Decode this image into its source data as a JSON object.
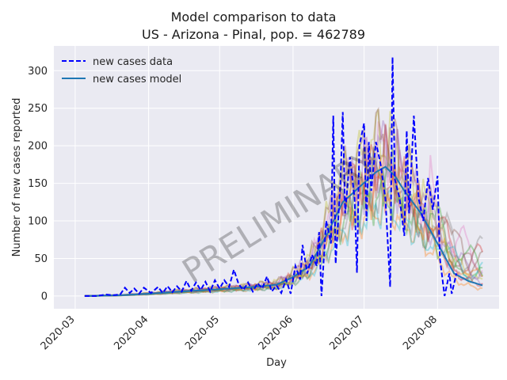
{
  "chart_data": {
    "type": "line",
    "title": "Model comparison to data",
    "subtitle": "US - Arizona - Pinal, pop. = 462789",
    "xlabel": "Day",
    "ylabel": "Number of new cases reported",
    "watermark": "PRELIMINARY",
    "x_ticks": [
      "2020-03",
      "2020-04",
      "2020-05",
      "2020-06",
      "2020-07",
      "2020-08"
    ],
    "y_ticks": [
      0,
      50,
      100,
      150,
      200,
      250,
      300
    ],
    "xlim": [
      "2020-02-21",
      "2020-08-27"
    ],
    "ylim": [
      -17,
      333
    ],
    "grid": true,
    "legend_position": "top-left",
    "legend": [
      {
        "label": "new cases data",
        "color": "#0000ff",
        "style": "dashed"
      },
      {
        "label": "new cases model",
        "color": "#1f77b4",
        "style": "solid"
      }
    ],
    "colors": {
      "background": "#eaeaf2",
      "grid": "#ffffff",
      "data_line": "#0000ff",
      "model_line": "#1f77b4",
      "ensemble": [
        "#ff7f0e",
        "#2ca02c",
        "#d62728",
        "#9467bd",
        "#8c564b",
        "#e377c2",
        "#bcbd22",
        "#17becf",
        "#7f7f7f"
      ]
    },
    "series": [
      {
        "name": "new cases data",
        "points": [
          [
            "2020-03-05",
            0
          ],
          [
            "2020-03-10",
            0
          ],
          [
            "2020-03-14",
            2
          ],
          [
            "2020-03-17",
            1
          ],
          [
            "2020-03-20",
            2
          ],
          [
            "2020-03-22",
            11
          ],
          [
            "2020-03-24",
            4
          ],
          [
            "2020-03-26",
            10
          ],
          [
            "2020-03-28",
            3
          ],
          [
            "2020-03-30",
            11
          ],
          [
            "2020-04-02",
            4
          ],
          [
            "2020-04-05",
            12
          ],
          [
            "2020-04-07",
            4
          ],
          [
            "2020-04-09",
            13
          ],
          [
            "2020-04-11",
            5
          ],
          [
            "2020-04-13",
            13
          ],
          [
            "2020-04-15",
            6
          ],
          [
            "2020-04-17",
            20
          ],
          [
            "2020-04-19",
            7
          ],
          [
            "2020-04-21",
            18
          ],
          [
            "2020-04-23",
            8
          ],
          [
            "2020-04-25",
            19
          ],
          [
            "2020-04-27",
            6
          ],
          [
            "2020-04-29",
            21
          ],
          [
            "2020-05-01",
            10
          ],
          [
            "2020-05-03",
            21
          ],
          [
            "2020-05-05",
            12
          ],
          [
            "2020-05-07",
            35
          ],
          [
            "2020-05-09",
            16
          ],
          [
            "2020-05-11",
            8
          ],
          [
            "2020-05-13",
            18
          ],
          [
            "2020-05-15",
            6
          ],
          [
            "2020-05-17",
            17
          ],
          [
            "2020-05-19",
            10
          ],
          [
            "2020-05-21",
            26
          ],
          [
            "2020-05-23",
            6
          ],
          [
            "2020-05-25",
            14
          ],
          [
            "2020-05-27",
            4
          ],
          [
            "2020-05-29",
            22
          ],
          [
            "2020-05-31",
            3
          ],
          [
            "2020-06-02",
            40
          ],
          [
            "2020-06-04",
            22
          ],
          [
            "2020-06-05",
            68
          ],
          [
            "2020-06-07",
            30
          ],
          [
            "2020-06-09",
            55
          ],
          [
            "2020-06-11",
            40
          ],
          [
            "2020-06-12",
            85
          ],
          [
            "2020-06-13",
            0
          ],
          [
            "2020-06-15",
            100
          ],
          [
            "2020-06-17",
            70
          ],
          [
            "2020-06-18",
            240
          ],
          [
            "2020-06-19",
            43
          ],
          [
            "2020-06-21",
            150
          ],
          [
            "2020-06-22",
            245
          ],
          [
            "2020-06-23",
            110
          ],
          [
            "2020-06-25",
            185
          ],
          [
            "2020-06-27",
            130
          ],
          [
            "2020-06-28",
            31
          ],
          [
            "2020-06-29",
            200
          ],
          [
            "2020-07-01",
            230
          ],
          [
            "2020-07-02",
            100
          ],
          [
            "2020-07-03",
            205
          ],
          [
            "2020-07-04",
            140
          ],
          [
            "2020-07-06",
            205
          ],
          [
            "2020-07-08",
            175
          ],
          [
            "2020-07-10",
            130
          ],
          [
            "2020-07-12",
            12
          ],
          [
            "2020-07-13",
            318
          ],
          [
            "2020-07-14",
            155
          ],
          [
            "2020-07-16",
            130
          ],
          [
            "2020-07-18",
            80
          ],
          [
            "2020-07-19",
            220
          ],
          [
            "2020-07-20",
            110
          ],
          [
            "2020-07-22",
            240
          ],
          [
            "2020-07-24",
            130
          ],
          [
            "2020-07-26",
            100
          ],
          [
            "2020-07-28",
            157
          ],
          [
            "2020-07-30",
            115
          ],
          [
            "2020-08-01",
            160
          ],
          [
            "2020-08-02",
            50
          ],
          [
            "2020-08-04",
            0
          ],
          [
            "2020-08-06",
            30
          ],
          [
            "2020-08-07",
            3
          ],
          [
            "2020-08-09",
            30
          ]
        ]
      },
      {
        "name": "new cases model",
        "points": [
          [
            "2020-03-05",
            0
          ],
          [
            "2020-03-20",
            1
          ],
          [
            "2020-04-01",
            3
          ],
          [
            "2020-04-15",
            6
          ],
          [
            "2020-05-01",
            9
          ],
          [
            "2020-05-15",
            12
          ],
          [
            "2020-05-25",
            15
          ],
          [
            "2020-06-01",
            25
          ],
          [
            "2020-06-08",
            40
          ],
          [
            "2020-06-15",
            80
          ],
          [
            "2020-06-22",
            125
          ],
          [
            "2020-06-29",
            145
          ],
          [
            "2020-07-06",
            165
          ],
          [
            "2020-07-10",
            172
          ],
          [
            "2020-07-14",
            160
          ],
          [
            "2020-07-18",
            140
          ],
          [
            "2020-07-25",
            110
          ],
          [
            "2020-08-01",
            70
          ],
          [
            "2020-08-08",
            30
          ],
          [
            "2020-08-14",
            20
          ],
          [
            "2020-08-20",
            14
          ]
        ]
      }
    ]
  }
}
